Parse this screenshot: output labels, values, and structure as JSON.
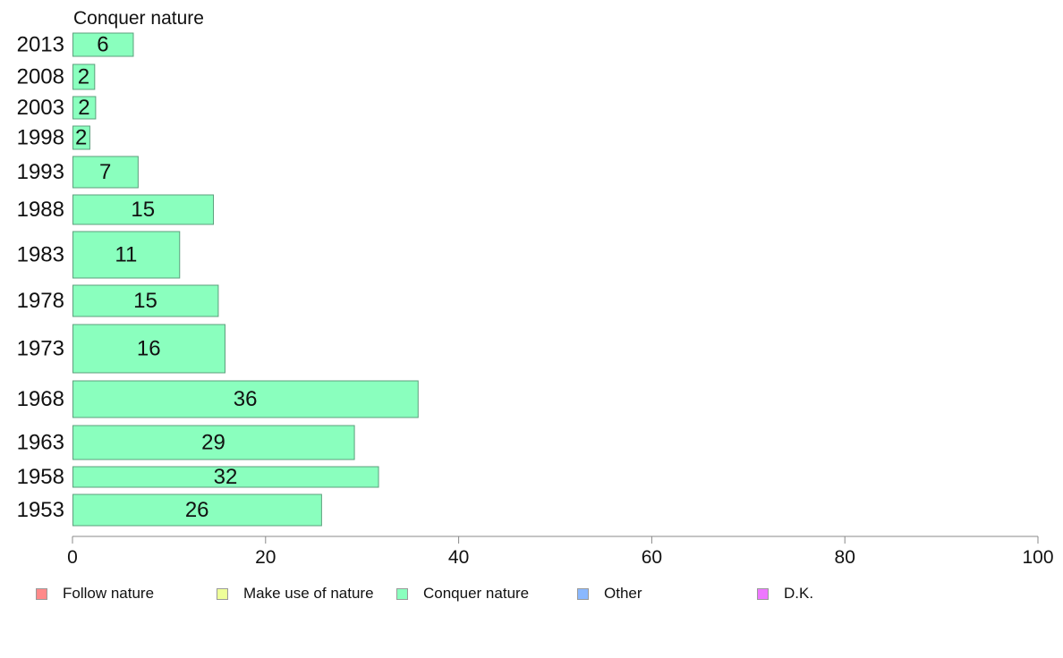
{
  "chart_data": {
    "type": "bar",
    "orientation": "horizontal",
    "title": "Conquer nature",
    "categories": [
      "2013",
      "2008",
      "2003",
      "1998",
      "1993",
      "1988",
      "1983",
      "1978",
      "1973",
      "1968",
      "1963",
      "1958",
      "1953"
    ],
    "series": [
      {
        "name": "Conquer nature",
        "color": "#8affbe",
        "values": [
          6,
          2,
          2,
          2,
          7,
          15,
          11,
          15,
          16,
          36,
          29,
          32,
          26
        ],
        "bar_lengths": [
          6.3,
          2.3,
          2.4,
          1.8,
          6.8,
          14.6,
          11.1,
          15.1,
          15.8,
          35.8,
          29.2,
          31.7,
          25.8
        ]
      }
    ],
    "xlim": [
      0,
      100
    ],
    "xticks": [
      "0",
      "20",
      "40",
      "60",
      "80",
      "100"
    ],
    "grid": false,
    "legend": {
      "position": "bottom",
      "items": [
        {
          "label": "Follow nature",
          "color": "#ff8a8a"
        },
        {
          "label": "Make use of nature",
          "color": "#eeff99"
        },
        {
          "label": "Conquer nature",
          "color": "#8affbe"
        },
        {
          "label": "Other",
          "color": "#8ab8ff"
        },
        {
          "label": "D.K.",
          "color": "#ee77ff"
        }
      ]
    }
  }
}
